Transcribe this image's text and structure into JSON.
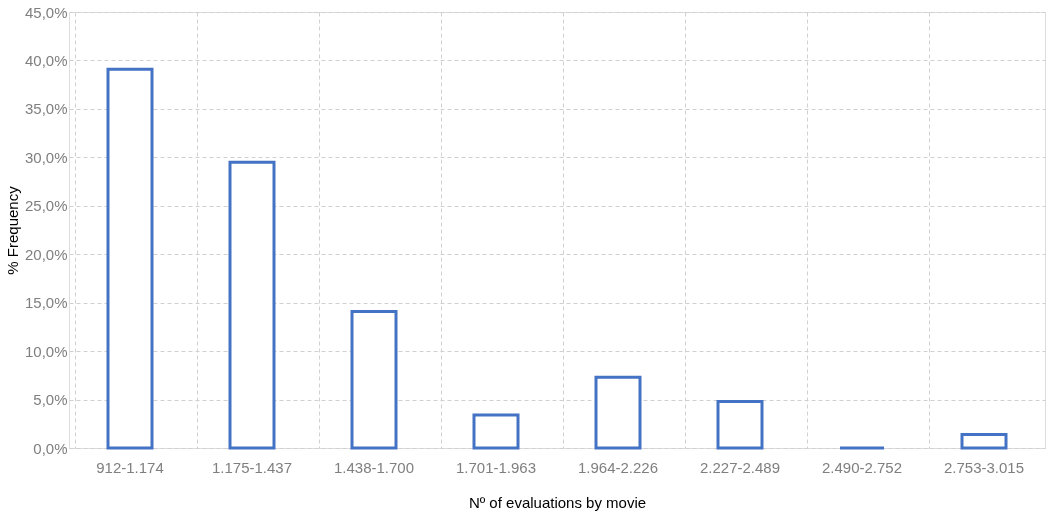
{
  "chart_data": {
    "type": "bar",
    "xlabel": "Nº of evaluations by movie",
    "ylabel": "% Frequency",
    "categories": [
      "912-1.174",
      "1.175-1.437",
      "1.438-1.700",
      "1.701-1.963",
      "1.964-2.226",
      "2.227-2.489",
      "2.490-2.752",
      "2.753-3.015"
    ],
    "values": [
      39.1,
      29.5,
      14.1,
      3.4,
      7.3,
      4.8,
      0,
      1.4
    ],
    "color": "#4472c4",
    "ylim": [
      0,
      45
    ],
    "yticks": [
      {
        "value": 0,
        "label": "0,0%"
      },
      {
        "value": 5,
        "label": "5,0%"
      },
      {
        "value": 10,
        "label": "10,0%"
      },
      {
        "value": 15,
        "label": "15,0%"
      },
      {
        "value": 20,
        "label": "20,0%"
      },
      {
        "value": 25,
        "label": "25,0%"
      },
      {
        "value": 30,
        "label": "30,0%"
      },
      {
        "value": 35,
        "label": "35,0%"
      },
      {
        "value": 40,
        "label": "40,0%"
      },
      {
        "value": 45,
        "label": "45,0%"
      }
    ],
    "grid": true
  }
}
